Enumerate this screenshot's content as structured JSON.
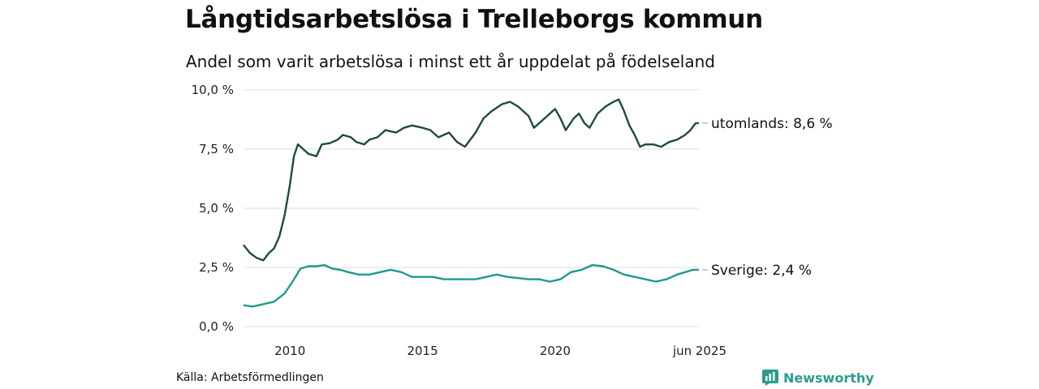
{
  "header": {
    "title": "Långtidsarbetslösa i Trelleborgs kommun",
    "subtitle": "Andel som varit arbetslösa i minst ett år uppdelat på födelseland"
  },
  "footer": {
    "source": "Källa: Arbetsförmedlingen",
    "brand": "Newsworthy",
    "brand_icon": "bar-chart-logo-icon"
  },
  "colors": {
    "utomlands": "#1f4a44",
    "sverige": "#1f9a8a",
    "grid": "#dddddd",
    "brand": "#2a9d8f"
  },
  "chart_data": {
    "type": "line",
    "title": "Långtidsarbetslösa i Trelleborgs kommun",
    "subtitle": "Andel som varit arbetslösa i minst ett år uppdelat på födelseland",
    "xlabel": "",
    "ylabel": "",
    "x_range": [
      2008.25,
      2025.42
    ],
    "ylim": [
      0,
      10
    ],
    "y_ticks": [
      0,
      2.5,
      5,
      7.5,
      10
    ],
    "y_tick_labels": [
      "0,0 %",
      "2,5 %",
      "5,0 %",
      "7,5 %",
      "10,0 %"
    ],
    "x_ticks": [
      2010,
      2015,
      2020,
      2025.42
    ],
    "x_tick_labels": [
      "2010",
      "2015",
      "2020",
      "jun 2025"
    ],
    "grid": "horizontal",
    "legend": "end-labels",
    "series": [
      {
        "name": "utomlands",
        "end_label": "utomlands: 8,6 %",
        "points": [
          [
            2008.25,
            3.45
          ],
          [
            2008.5,
            3.1
          ],
          [
            2008.75,
            2.9
          ],
          [
            2009.0,
            2.8
          ],
          [
            2009.2,
            3.1
          ],
          [
            2009.4,
            3.3
          ],
          [
            2009.6,
            3.8
          ],
          [
            2009.8,
            4.7
          ],
          [
            2010.0,
            6.0
          ],
          [
            2010.15,
            7.2
          ],
          [
            2010.3,
            7.7
          ],
          [
            2010.5,
            7.5
          ],
          [
            2010.7,
            7.3
          ],
          [
            2011.0,
            7.2
          ],
          [
            2011.2,
            7.7
          ],
          [
            2011.5,
            7.75
          ],
          [
            2011.8,
            7.9
          ],
          [
            2012.0,
            8.1
          ],
          [
            2012.3,
            8.0
          ],
          [
            2012.5,
            7.8
          ],
          [
            2012.8,
            7.7
          ],
          [
            2013.0,
            7.9
          ],
          [
            2013.3,
            8.0
          ],
          [
            2013.6,
            8.3
          ],
          [
            2014.0,
            8.2
          ],
          [
            2014.3,
            8.4
          ],
          [
            2014.6,
            8.5
          ],
          [
            2015.0,
            8.4
          ],
          [
            2015.3,
            8.3
          ],
          [
            2015.6,
            8.0
          ],
          [
            2016.0,
            8.2
          ],
          [
            2016.3,
            7.8
          ],
          [
            2016.6,
            7.6
          ],
          [
            2017.0,
            8.2
          ],
          [
            2017.3,
            8.8
          ],
          [
            2017.6,
            9.1
          ],
          [
            2018.0,
            9.4
          ],
          [
            2018.3,
            9.5
          ],
          [
            2018.6,
            9.3
          ],
          [
            2019.0,
            8.9
          ],
          [
            2019.2,
            8.4
          ],
          [
            2019.5,
            8.7
          ],
          [
            2019.8,
            9.0
          ],
          [
            2020.0,
            9.2
          ],
          [
            2020.2,
            8.8
          ],
          [
            2020.4,
            8.3
          ],
          [
            2020.7,
            8.8
          ],
          [
            2020.9,
            9.0
          ],
          [
            2021.1,
            8.6
          ],
          [
            2021.3,
            8.4
          ],
          [
            2021.6,
            9.0
          ],
          [
            2021.9,
            9.3
          ],
          [
            2022.2,
            9.5
          ],
          [
            2022.4,
            9.6
          ],
          [
            2022.6,
            9.1
          ],
          [
            2022.8,
            8.5
          ],
          [
            2023.0,
            8.1
          ],
          [
            2023.2,
            7.6
          ],
          [
            2023.4,
            7.7
          ],
          [
            2023.7,
            7.7
          ],
          [
            2024.0,
            7.6
          ],
          [
            2024.3,
            7.8
          ],
          [
            2024.6,
            7.9
          ],
          [
            2024.9,
            8.1
          ],
          [
            2025.1,
            8.3
          ],
          [
            2025.3,
            8.6
          ],
          [
            2025.42,
            8.6
          ]
        ]
      },
      {
        "name": "Sverige",
        "end_label": "Sverige: 2,4 %",
        "points": [
          [
            2008.25,
            0.9
          ],
          [
            2008.6,
            0.85
          ],
          [
            2009.0,
            0.95
          ],
          [
            2009.4,
            1.05
          ],
          [
            2009.8,
            1.4
          ],
          [
            2010.1,
            1.9
          ],
          [
            2010.4,
            2.45
          ],
          [
            2010.7,
            2.55
          ],
          [
            2011.0,
            2.55
          ],
          [
            2011.3,
            2.6
          ],
          [
            2011.6,
            2.45
          ],
          [
            2011.9,
            2.4
          ],
          [
            2012.2,
            2.3
          ],
          [
            2012.6,
            2.2
          ],
          [
            2013.0,
            2.2
          ],
          [
            2013.4,
            2.3
          ],
          [
            2013.8,
            2.4
          ],
          [
            2014.2,
            2.3
          ],
          [
            2014.6,
            2.1
          ],
          [
            2015.0,
            2.1
          ],
          [
            2015.4,
            2.1
          ],
          [
            2015.8,
            2.0
          ],
          [
            2016.2,
            2.0
          ],
          [
            2016.6,
            2.0
          ],
          [
            2017.0,
            2.0
          ],
          [
            2017.4,
            2.1
          ],
          [
            2017.8,
            2.2
          ],
          [
            2018.2,
            2.1
          ],
          [
            2018.6,
            2.05
          ],
          [
            2019.0,
            2.0
          ],
          [
            2019.4,
            2.0
          ],
          [
            2019.8,
            1.9
          ],
          [
            2020.2,
            2.0
          ],
          [
            2020.6,
            2.3
          ],
          [
            2021.0,
            2.4
          ],
          [
            2021.4,
            2.6
          ],
          [
            2021.8,
            2.55
          ],
          [
            2022.2,
            2.4
          ],
          [
            2022.6,
            2.2
          ],
          [
            2023.0,
            2.1
          ],
          [
            2023.4,
            2.0
          ],
          [
            2023.8,
            1.9
          ],
          [
            2024.2,
            2.0
          ],
          [
            2024.6,
            2.2
          ],
          [
            2024.9,
            2.3
          ],
          [
            2025.2,
            2.4
          ],
          [
            2025.42,
            2.4
          ]
        ]
      }
    ]
  }
}
